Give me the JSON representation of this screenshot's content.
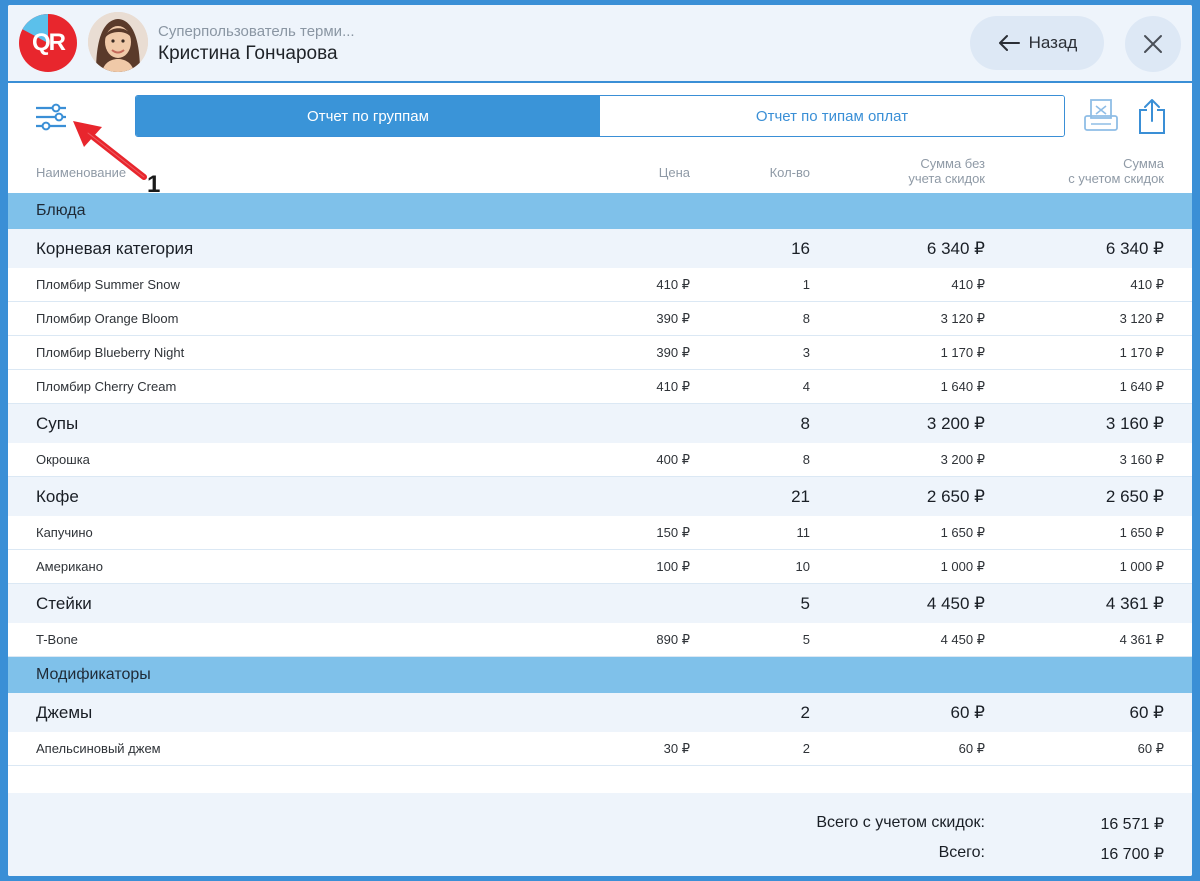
{
  "header": {
    "role": "Суперпользователь терми...",
    "user_name": "Кристина Гончарова",
    "logo_text": "QR",
    "back_label": "Назад"
  },
  "tabs": [
    {
      "label": "Отчет по группам",
      "active": true
    },
    {
      "label": "Отчет по типам оплат",
      "active": false
    }
  ],
  "annotation": {
    "number": "1",
    "color": "#e8262d"
  },
  "columns": {
    "name": "Наименование",
    "price": "Цена",
    "qty": "Кол-во",
    "sum_no_discount": [
      "Сумма без",
      "учета скидок"
    ],
    "sum_with_discount": [
      "Сумма",
      "с учетом скидок"
    ]
  },
  "rows": [
    {
      "type": "section",
      "name": "Блюда"
    },
    {
      "type": "category",
      "name": "Корневая категория",
      "price": "",
      "qty": "16",
      "sum1": "6 340 ₽",
      "sum2": "6 340 ₽"
    },
    {
      "type": "item",
      "name": "Пломбир Summer Snow",
      "price": "410 ₽",
      "qty": "1",
      "sum1": "410 ₽",
      "sum2": "410 ₽"
    },
    {
      "type": "item",
      "name": "Пломбир Orange Bloom",
      "price": "390 ₽",
      "qty": "8",
      "sum1": "3 120 ₽",
      "sum2": "3 120 ₽"
    },
    {
      "type": "item",
      "name": "Пломбир Blueberry Night",
      "price": "390 ₽",
      "qty": "3",
      "sum1": "1 170 ₽",
      "sum2": "1 170 ₽"
    },
    {
      "type": "item",
      "name": "Пломбир Cherry Cream",
      "price": "410 ₽",
      "qty": "4",
      "sum1": "1 640 ₽",
      "sum2": "1 640 ₽"
    },
    {
      "type": "category",
      "name": "Супы",
      "price": "",
      "qty": "8",
      "sum1": "3 200 ₽",
      "sum2": "3 160 ₽"
    },
    {
      "type": "item",
      "name": "Окрошка",
      "price": "400 ₽",
      "qty": "8",
      "sum1": "3 200 ₽",
      "sum2": "3 160 ₽"
    },
    {
      "type": "category",
      "name": "Кофе",
      "price": "",
      "qty": "21",
      "sum1": "2 650 ₽",
      "sum2": "2 650 ₽"
    },
    {
      "type": "item",
      "name": "Капучино",
      "price": "150 ₽",
      "qty": "11",
      "sum1": "1 650 ₽",
      "sum2": "1 650 ₽"
    },
    {
      "type": "item",
      "name": "Американо",
      "price": "100 ₽",
      "qty": "10",
      "sum1": "1 000 ₽",
      "sum2": "1 000 ₽"
    },
    {
      "type": "category",
      "name": "Стейки",
      "price": "",
      "qty": "5",
      "sum1": "4 450 ₽",
      "sum2": "4 361 ₽"
    },
    {
      "type": "item",
      "name": "T-Bone",
      "price": "890 ₽",
      "qty": "5",
      "sum1": "4 450 ₽",
      "sum2": "4 361 ₽"
    },
    {
      "type": "section",
      "name": "Модификаторы"
    },
    {
      "type": "category",
      "name": "Джемы",
      "price": "",
      "qty": "2",
      "sum1": "60 ₽",
      "sum2": "60 ₽"
    },
    {
      "type": "item",
      "name": "Апельсиновый джем",
      "price": "30 ₽",
      "qty": "2",
      "sum1": "60 ₽",
      "sum2": "60 ₽"
    }
  ],
  "totals": {
    "with_discount_label": "Всего с учетом скидок:",
    "with_discount_value": "16 571 ₽",
    "total_label": "Всего:",
    "total_value": "16 700 ₽"
  },
  "colors": {
    "accent": "#3a8fd6",
    "section_bg": "#7fc1ea",
    "light_bg": "#eef4fb",
    "brand_red": "#e8262d"
  }
}
